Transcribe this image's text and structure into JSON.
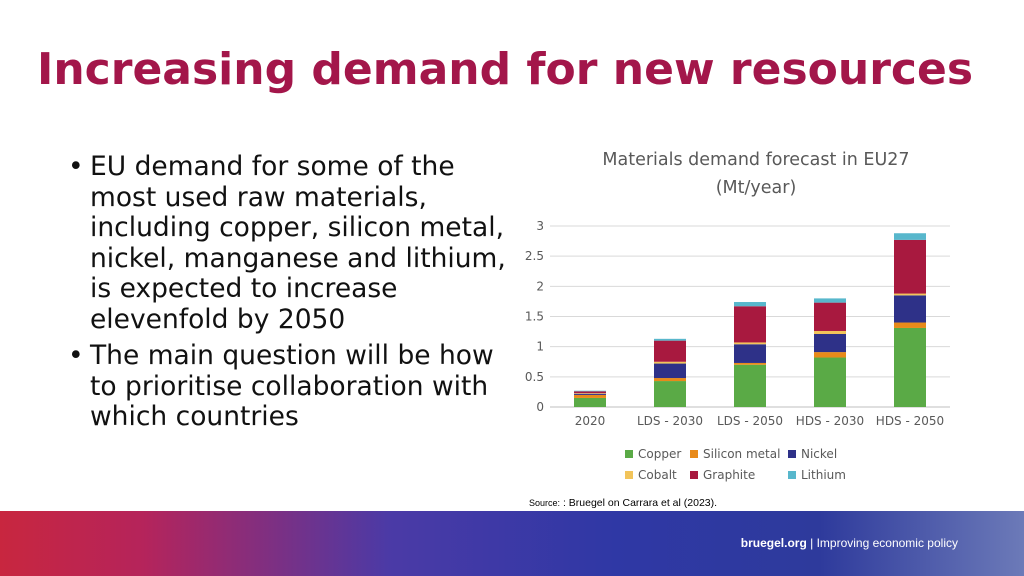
{
  "slide": {
    "title": "Increasing demand for new resources",
    "bullets": [
      "EU demand for some of the most used raw materials, including copper, silicon metal, nickel, manganese and lithium, is expected to increase elevenfold by 2050",
      "The main question will be how to prioritise collaboration with which countries"
    ],
    "bullet_glyph": "•"
  },
  "chart_data": {
    "type": "bar",
    "stacked": true,
    "title": "Materials demand forecast in EU27 (Mt/year)",
    "title_lines": [
      "Materials demand forecast in EU27",
      "(Mt/year)"
    ],
    "categories": [
      "2020",
      "LDS - 2030",
      "LDS - 2050",
      "HDS - 2030",
      "HDS - 2050"
    ],
    "series": [
      {
        "name": "Copper",
        "color": "#5aaa46",
        "values": [
          0.15,
          0.43,
          0.7,
          0.82,
          1.31
        ]
      },
      {
        "name": "Silicon metal",
        "color": "#e88a1a",
        "values": [
          0.05,
          0.05,
          0.03,
          0.09,
          0.09
        ]
      },
      {
        "name": "Nickel",
        "color": "#2e3188",
        "values": [
          0.02,
          0.24,
          0.31,
          0.3,
          0.45
        ]
      },
      {
        "name": "Cobalt",
        "color": "#f2c45a",
        "values": [
          0.01,
          0.03,
          0.03,
          0.05,
          0.03
        ]
      },
      {
        "name": "Graphite",
        "color": "#a8193f",
        "values": [
          0.03,
          0.35,
          0.6,
          0.47,
          0.89
        ]
      },
      {
        "name": "Lithium",
        "color": "#58b7cc",
        "values": [
          0.01,
          0.03,
          0.07,
          0.07,
          0.11
        ]
      }
    ],
    "yticks": [
      "0",
      "0.5",
      "1",
      "1.5",
      "2",
      "2.5",
      "3"
    ],
    "ylim": [
      0,
      3
    ],
    "grid": true,
    "legend": "bottom"
  },
  "source": {
    "label": "Source:",
    "text": ": Bruegel on Carrara et al (2023)."
  },
  "footer": {
    "site": "bruegel.org",
    "separator": " | ",
    "tagline": "Improving economic policy"
  }
}
